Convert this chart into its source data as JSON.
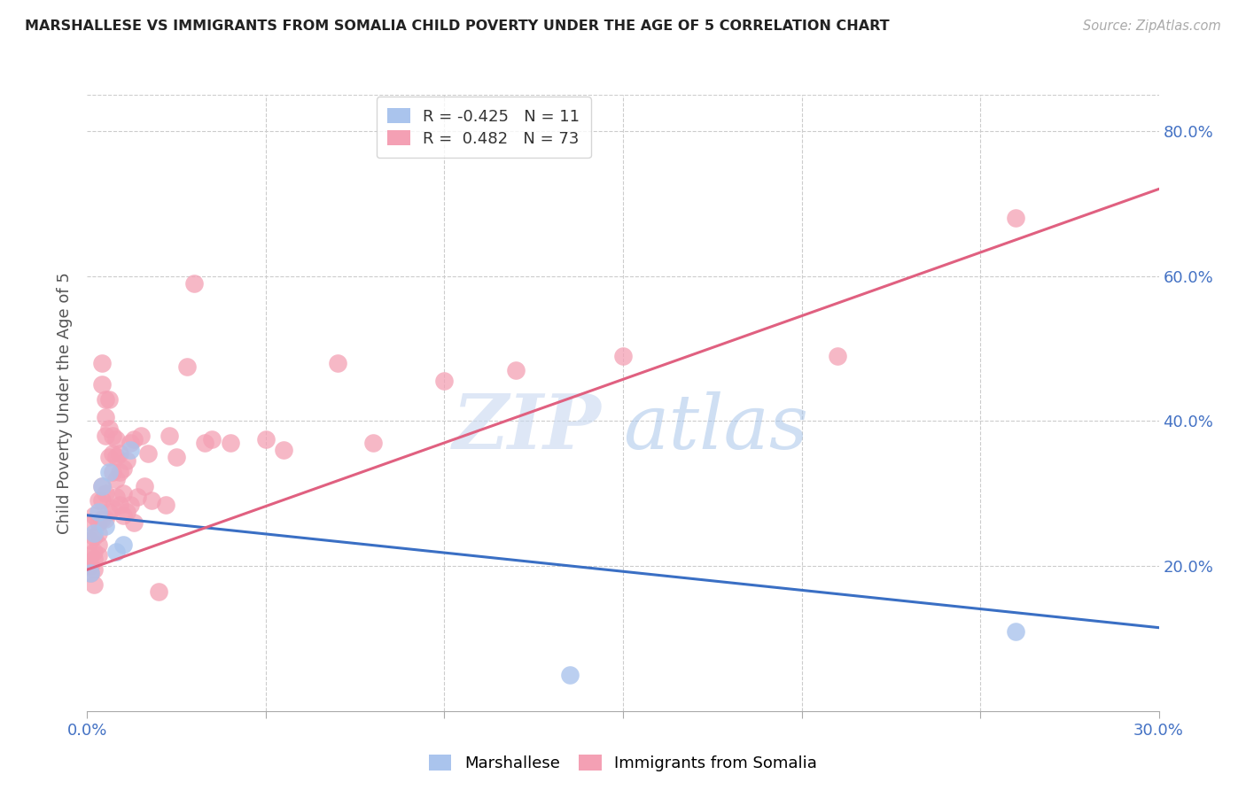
{
  "title": "MARSHALLESE VS IMMIGRANTS FROM SOMALIA CHILD POVERTY UNDER THE AGE OF 5 CORRELATION CHART",
  "source": "Source: ZipAtlas.com",
  "ylabel": "Child Poverty Under the Age of 5",
  "xmin": 0.0,
  "xmax": 0.3,
  "ymin": 0.0,
  "ymax": 0.85,
  "yticks": [
    0.2,
    0.4,
    0.6,
    0.8
  ],
  "ytick_labels": [
    "20.0%",
    "40.0%",
    "60.0%",
    "80.0%"
  ],
  "xtick_minor": [
    0.05,
    0.1,
    0.15,
    0.2,
    0.25
  ],
  "watermark_zip": "ZIP",
  "watermark_atlas": "atlas",
  "series_blue": {
    "label": "Marshallese",
    "R": -0.425,
    "N": 11,
    "color": "#aac4ed",
    "points_x": [
      0.001,
      0.002,
      0.003,
      0.004,
      0.005,
      0.006,
      0.008,
      0.01,
      0.012,
      0.135,
      0.26
    ],
    "points_y": [
      0.19,
      0.245,
      0.275,
      0.31,
      0.255,
      0.33,
      0.22,
      0.23,
      0.36,
      0.05,
      0.11
    ],
    "trend_x": [
      0.0,
      0.3
    ],
    "trend_y": [
      0.27,
      0.115
    ]
  },
  "series_pink": {
    "label": "Immigrants from Somalia",
    "R": 0.482,
    "N": 73,
    "color": "#f4a0b4",
    "points_x": [
      0.001,
      0.001,
      0.001,
      0.001,
      0.001,
      0.002,
      0.002,
      0.002,
      0.002,
      0.002,
      0.002,
      0.003,
      0.003,
      0.003,
      0.003,
      0.003,
      0.004,
      0.004,
      0.004,
      0.004,
      0.004,
      0.005,
      0.005,
      0.005,
      0.005,
      0.005,
      0.006,
      0.006,
      0.006,
      0.006,
      0.007,
      0.007,
      0.007,
      0.007,
      0.008,
      0.008,
      0.008,
      0.008,
      0.009,
      0.009,
      0.009,
      0.01,
      0.01,
      0.01,
      0.011,
      0.011,
      0.012,
      0.012,
      0.013,
      0.013,
      0.014,
      0.015,
      0.016,
      0.017,
      0.018,
      0.02,
      0.022,
      0.023,
      0.025,
      0.028,
      0.03,
      0.033,
      0.035,
      0.04,
      0.05,
      0.055,
      0.07,
      0.08,
      0.1,
      0.12,
      0.15,
      0.21,
      0.26
    ],
    "points_y": [
      0.26,
      0.235,
      0.215,
      0.2,
      0.19,
      0.27,
      0.24,
      0.22,
      0.21,
      0.195,
      0.175,
      0.29,
      0.26,
      0.245,
      0.23,
      0.215,
      0.48,
      0.45,
      0.31,
      0.29,
      0.265,
      0.43,
      0.405,
      0.38,
      0.3,
      0.265,
      0.43,
      0.39,
      0.35,
      0.275,
      0.38,
      0.355,
      0.33,
      0.28,
      0.375,
      0.35,
      0.32,
      0.295,
      0.355,
      0.33,
      0.285,
      0.335,
      0.3,
      0.27,
      0.345,
      0.275,
      0.37,
      0.285,
      0.375,
      0.26,
      0.295,
      0.38,
      0.31,
      0.355,
      0.29,
      0.165,
      0.285,
      0.38,
      0.35,
      0.475,
      0.59,
      0.37,
      0.375,
      0.37,
      0.375,
      0.36,
      0.48,
      0.37,
      0.455,
      0.47,
      0.49,
      0.49,
      0.68
    ],
    "trend_x": [
      0.0,
      0.3
    ],
    "trend_y": [
      0.195,
      0.72
    ]
  },
  "title_color": "#222222",
  "source_color": "#aaaaaa",
  "axis_tick_color": "#4472c4",
  "grid_color": "#cccccc",
  "background_color": "#ffffff"
}
